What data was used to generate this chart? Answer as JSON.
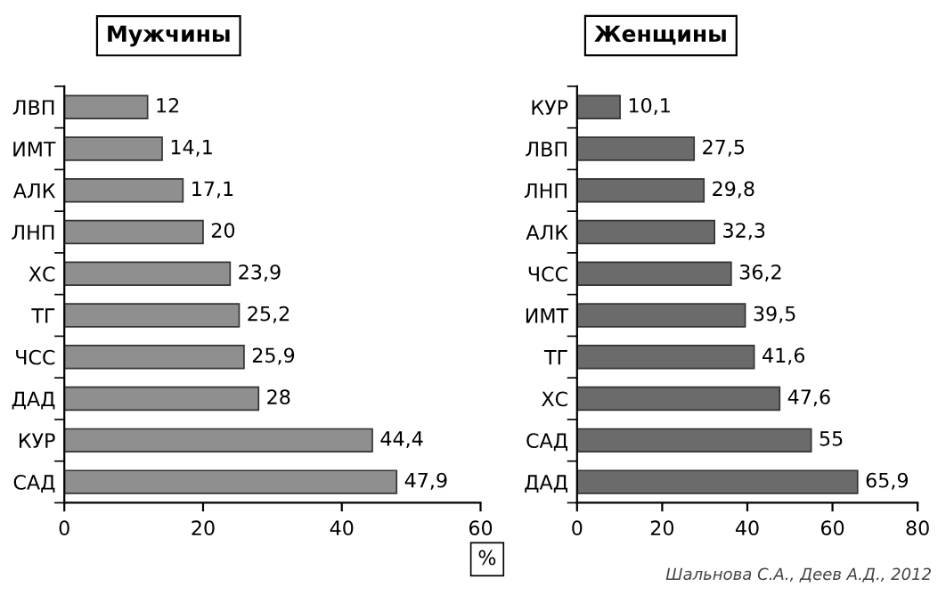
{
  "chart_data": [
    {
      "type": "bar",
      "orientation": "horizontal",
      "title": "Мужчины",
      "categories": [
        "ЛВП",
        "ИМТ",
        "АЛК",
        "ЛНП",
        "ХС",
        "ТГ",
        "ЧСС",
        "ДАД",
        "КУР",
        "САД"
      ],
      "values": [
        12,
        14.1,
        17.1,
        20,
        23.9,
        25.2,
        25.9,
        28,
        44.4,
        47.9
      ],
      "value_labels": [
        "12",
        "14,1",
        "17,1",
        "20",
        "23,9",
        "25,2",
        "25,9",
        "28",
        "44,4",
        "47,9"
      ],
      "color": "#8f8f8f",
      "xlim": [
        0,
        60
      ],
      "xticks": [
        0,
        20,
        40,
        60
      ],
      "annotations": [
        "%"
      ]
    },
    {
      "type": "bar",
      "orientation": "horizontal",
      "title": "Женщины",
      "categories": [
        "КУР",
        "ЛВП",
        "ЛНП",
        "АЛК",
        "ЧСС",
        "ИМТ",
        "ТГ",
        "ХС",
        "САД",
        "ДАД"
      ],
      "values": [
        10.1,
        27.5,
        29.8,
        32.3,
        36.2,
        39.5,
        41.6,
        47.6,
        55,
        65.9
      ],
      "value_labels": [
        "10,1",
        "27,5",
        "29,8",
        "32,3",
        "36,2",
        "39,5",
        "41,6",
        "47,6",
        "55",
        "65,9"
      ],
      "color": "#6b6b6b",
      "xlim": [
        0,
        80
      ],
      "xticks": [
        0,
        20,
        40,
        60,
        80
      ],
      "annotations": [
        "Шальнова С.А., Деев А.Д., 2012"
      ]
    }
  ]
}
